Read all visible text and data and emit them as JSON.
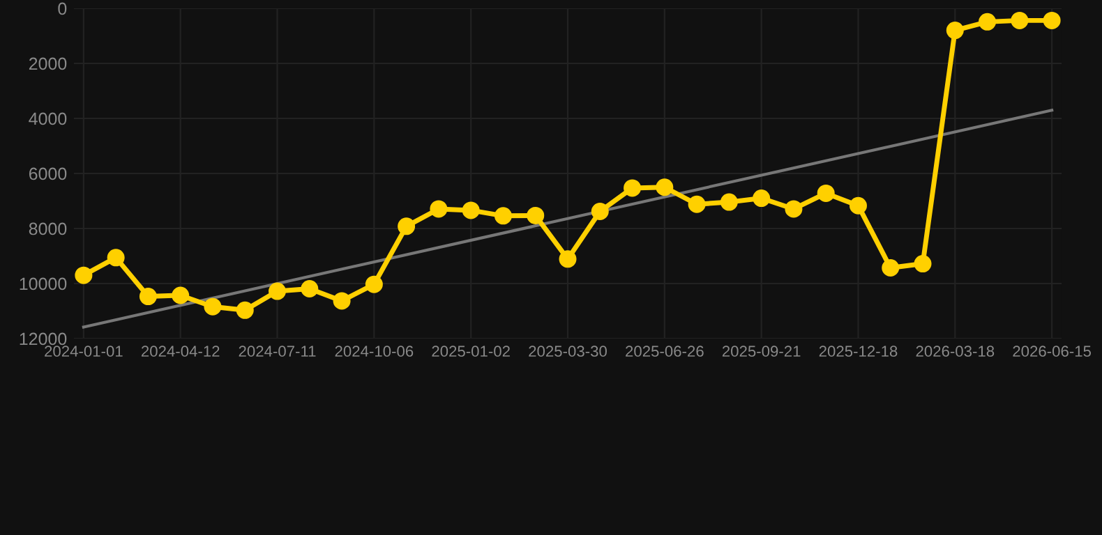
{
  "chart_data": {
    "type": "line",
    "categories": [
      "2024-01-01",
      null,
      null,
      "2024-04-12",
      null,
      null,
      "2024-07-11",
      null,
      null,
      "2024-10-06",
      null,
      null,
      "2025-01-02",
      null,
      null,
      "2025-03-30",
      null,
      null,
      "2025-06-26",
      null,
      null,
      "2025-09-21",
      null,
      null,
      "2025-12-18",
      null,
      null,
      "2026-03-18",
      null,
      null,
      "2026-06-15"
    ],
    "series": [
      {
        "color": "#ffd000",
        "marker": "circle",
        "values": [
          9700,
          9060,
          10470,
          10430,
          10840,
          10970,
          10280,
          10190,
          10630,
          10030,
          7920,
          7290,
          7340,
          7540,
          7530,
          9110,
          7380,
          6530,
          6500,
          7120,
          7040,
          6900,
          7290,
          6720,
          7170,
          9430,
          9280,
          800,
          490,
          440,
          440
        ]
      },
      {
        "type": "line",
        "color": "#777777",
        "marker": "none",
        "values": [
          11580,
          null,
          null,
          null,
          null,
          null,
          null,
          null,
          null,
          null,
          null,
          null,
          null,
          null,
          null,
          null,
          null,
          null,
          null,
          null,
          null,
          null,
          null,
          null,
          null,
          null,
          null,
          null,
          null,
          null,
          3700
        ]
      }
    ],
    "ylim": [
      12000,
      0
    ],
    "yticks": [
      0,
      2000,
      4000,
      6000,
      8000,
      10000,
      12000
    ],
    "grid": true,
    "legend": false
  }
}
